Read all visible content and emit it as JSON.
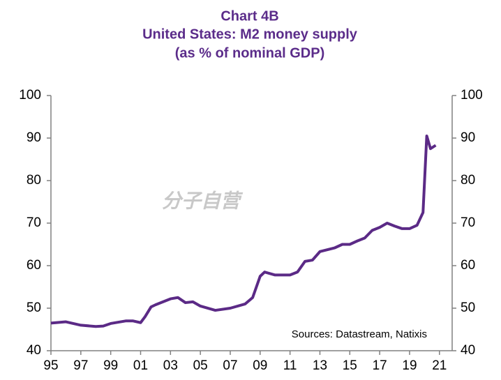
{
  "chart_data": {
    "type": "line",
    "title": "Chart 4B",
    "subtitle": [
      "United States: M2 money supply",
      "(as % of nominal GDP)"
    ],
    "annotations": [
      "Sources: Datastream, Natixis",
      "分子自营"
    ],
    "x": [
      1995,
      1996,
      1997,
      1998,
      1998.5,
      1999,
      2000,
      2000.5,
      2001,
      2001.3,
      2001.7,
      2002,
      2003,
      2003.5,
      2004,
      2004.5,
      2005,
      2006,
      2007,
      2008,
      2008.5,
      2009,
      2009.3,
      2010,
      2011,
      2011.5,
      2012,
      2012.5,
      2013,
      2014,
      2014.5,
      2015,
      2015.5,
      2016,
      2016.5,
      2017,
      2017.5,
      2018,
      2018.5,
      2019,
      2019.5,
      2019.9,
      2020.15,
      2020.4,
      2020.75
    ],
    "series": [
      {
        "name": "M2 money supply",
        "color": "#5b2a86",
        "values": [
          46.5,
          46.8,
          46.0,
          45.7,
          45.8,
          46.4,
          47.0,
          47.0,
          46.6,
          48.0,
          50.3,
          50.8,
          52.2,
          52.5,
          51.3,
          51.5,
          50.5,
          49.5,
          50.0,
          51.0,
          52.5,
          57.5,
          58.5,
          57.8,
          57.8,
          58.5,
          61.0,
          61.3,
          63.3,
          64.2,
          65.0,
          65.0,
          65.8,
          66.5,
          68.3,
          69.0,
          70.0,
          69.3,
          68.7,
          68.7,
          69.5,
          72.5,
          90.5,
          87.5,
          88.3
        ]
      }
    ],
    "xlim": [
      1995,
      2021.85
    ],
    "xticks": [
      {
        "value": 1995,
        "label": "95"
      },
      {
        "value": 1997,
        "label": "97"
      },
      {
        "value": 1999,
        "label": "99"
      },
      {
        "value": 2001,
        "label": "01"
      },
      {
        "value": 2003,
        "label": "03"
      },
      {
        "value": 2005,
        "label": "05"
      },
      {
        "value": 2007,
        "label": "07"
      },
      {
        "value": 2009,
        "label": "09"
      },
      {
        "value": 2011,
        "label": "11"
      },
      {
        "value": 2013,
        "label": "13"
      },
      {
        "value": 2015,
        "label": "15"
      },
      {
        "value": 2017,
        "label": "17"
      },
      {
        "value": 2019,
        "label": "19"
      },
      {
        "value": 2021,
        "label": "21"
      }
    ],
    "ylim": [
      40,
      100
    ],
    "yticks": [
      40,
      50,
      60,
      70,
      80,
      90,
      100
    ],
    "y2lim": [
      40,
      100
    ],
    "y2ticks": [
      40,
      50,
      60,
      70,
      80,
      90,
      100
    ],
    "grid": false
  }
}
